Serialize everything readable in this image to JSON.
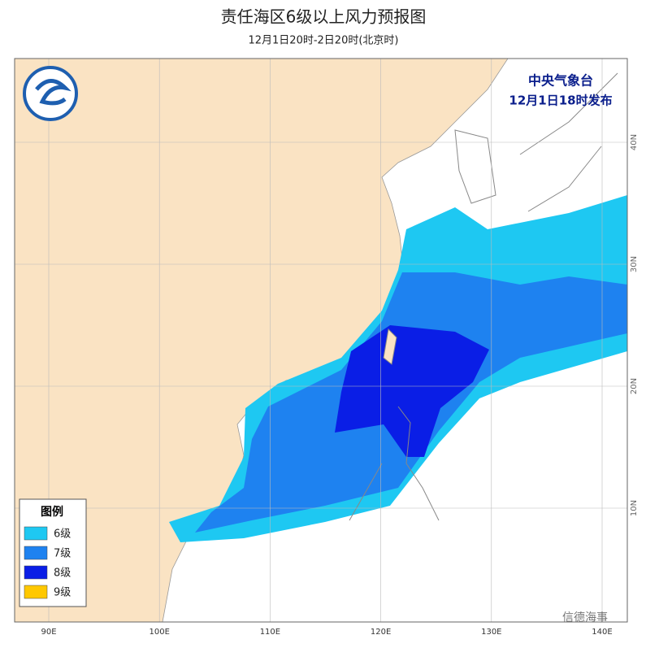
{
  "header": {
    "title": "责任海区6级以上风力预报图",
    "subtitle": "12月1日20时-2日20时(北京时)"
  },
  "issuer": {
    "name": "中央气象台",
    "issued": "12月1日18时发布"
  },
  "legend": {
    "title": "图例",
    "items": [
      {
        "label": "6级",
        "color": "#1ec8f2"
      },
      {
        "label": "7级",
        "color": "#1e82f0"
      },
      {
        "label": "8级",
        "color": "#0a1ee6"
      },
      {
        "label": "9级",
        "color": "#ffc800"
      }
    ]
  },
  "axes": {
    "lon_labels": [
      "90E",
      "100E",
      "110E",
      "120E",
      "130E",
      "140E"
    ],
    "lat_labels": [
      "40N",
      "30N",
      "20N",
      "10N"
    ]
  },
  "watermark": "信德海事"
}
